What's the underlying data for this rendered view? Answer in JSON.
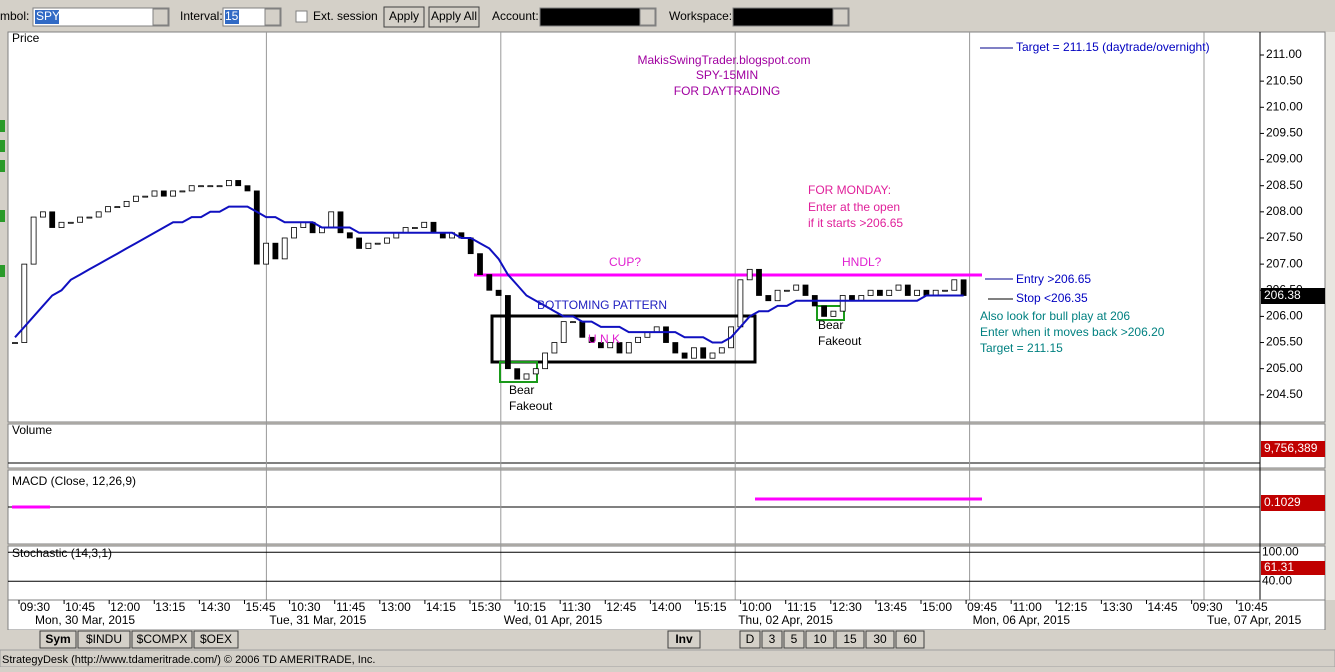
{
  "toolbar": {
    "symbol_label": "mbol:",
    "symbol": "SPY",
    "interval_label": "Interval:",
    "interval": "15",
    "ext_session": "Ext. session",
    "apply": "Apply",
    "apply_all": "Apply All",
    "account_label": "Account:",
    "workspace_label": "Workspace:"
  },
  "chart_data": [
    {
      "type": "candlestick",
      "title": "Price",
      "closes": [
        205.5,
        207.0,
        207.9,
        208.0,
        207.7,
        207.8,
        207.8,
        207.9,
        207.9,
        208.0,
        208.1,
        208.1,
        208.2,
        208.3,
        208.3,
        208.4,
        208.3,
        208.4,
        208.4,
        208.5,
        208.5,
        208.5,
        208.5,
        208.6,
        208.5,
        208.4,
        207.0,
        207.4,
        207.1,
        207.5,
        207.7,
        207.8,
        207.6,
        207.7,
        208.0,
        207.6,
        207.5,
        207.3,
        207.4,
        207.4,
        207.5,
        207.6,
        207.7,
        207.7,
        207.8,
        207.6,
        207.5,
        207.6,
        207.5,
        207.2,
        206.8,
        206.5,
        206.4,
        205.0,
        204.8,
        204.9,
        205.0,
        205.3,
        205.5,
        205.9,
        205.9,
        205.6,
        205.5,
        205.4,
        205.5,
        205.3,
        205.5,
        205.6,
        205.7,
        205.8,
        205.5,
        205.3,
        205.2,
        205.4,
        205.2,
        205.3,
        205.4,
        205.8,
        206.7,
        206.9,
        206.4,
        206.3,
        206.5,
        206.5,
        206.6,
        206.4,
        206.2,
        206.0,
        206.1,
        206.4,
        206.3,
        206.4,
        206.5,
        206.4,
        206.5,
        206.6,
        206.4,
        206.5,
        206.4,
        206.5,
        206.5,
        206.7,
        206.4
      ],
      "ema": [
        205.6,
        205.8,
        206.0,
        206.2,
        206.4,
        206.5,
        206.7,
        206.8,
        206.9,
        207.0,
        207.1,
        207.2,
        207.3,
        207.4,
        207.5,
        207.6,
        207.7,
        207.8,
        207.8,
        207.9,
        207.9,
        208.0,
        208.0,
        208.1,
        208.1,
        208.1,
        208.0,
        207.9,
        207.9,
        207.8,
        207.8,
        207.8,
        207.8,
        207.7,
        207.7,
        207.7,
        207.7,
        207.6,
        207.6,
        207.6,
        207.6,
        207.6,
        207.6,
        207.6,
        207.6,
        207.6,
        207.6,
        207.6,
        207.5,
        207.5,
        207.4,
        207.3,
        207.1,
        206.8,
        206.6,
        206.4,
        206.3,
        206.2,
        206.1,
        206.0,
        206.0,
        205.9,
        205.9,
        205.8,
        205.8,
        205.8,
        205.7,
        205.7,
        205.7,
        205.7,
        205.7,
        205.7,
        205.6,
        205.6,
        205.6,
        205.5,
        205.5,
        205.6,
        205.8,
        206.0,
        206.1,
        206.1,
        206.2,
        206.2,
        206.3,
        206.3,
        206.3,
        206.3,
        206.3,
        206.3,
        206.3,
        206.3,
        206.3,
        206.3,
        206.3,
        206.3,
        206.3,
        206.3,
        206.4,
        206.4,
        206.4,
        206.4,
        206.4
      ],
      "ylim": [
        203.98,
        211.44
      ],
      "yticks": [
        {
          "value": 211,
          "label": "211.00"
        },
        {
          "value": 210.5,
          "label": "210.50"
        },
        {
          "value": 210,
          "label": "210.00"
        },
        {
          "value": 209.5,
          "label": "209.50"
        },
        {
          "value": 209,
          "label": "209.00"
        },
        {
          "value": 208.5,
          "label": "208.50"
        },
        {
          "value": 208,
          "label": "208.00"
        },
        {
          "value": 207.5,
          "label": "207.50"
        },
        {
          "value": 207,
          "label": "207.00"
        },
        {
          "value": 206.5,
          "label": "206.50"
        },
        {
          "value": 206,
          "label": "206.00"
        },
        {
          "value": 205.5,
          "label": "205.50"
        },
        {
          "value": 205,
          "label": "205.00"
        },
        {
          "value": 204.5,
          "label": "204.50"
        }
      ],
      "last_value": 206.38,
      "annotations": {
        "blog": "MakisSwingTrader.blogspot.com",
        "chart_id": "SPY-15MIN",
        "purpose": "FOR DAYTRADING",
        "target_legend": "Target = 211.15 (daytrade/overnight)",
        "monday_1": "FOR MONDAY:",
        "monday_2": "Enter at the open",
        "monday_3": "if it starts >206.65",
        "cup": "CUP?",
        "handle": "HNDL?",
        "entry": "Entry >206.65",
        "stop": "Stop <206.35",
        "also_1": "Also look for bull play at 206",
        "also_2": "Enter when it moves back >206.20",
        "also_3": "Target = 211.15",
        "bottoming": "BOTTOMING PATTERN",
        "letters": "U N K",
        "bear_1": "Bear",
        "fakeout_1": "Fakeout",
        "bear_2": "Bear",
        "fakeout_2": "Fakeout"
      }
    },
    {
      "type": "bar",
      "title": "Volume",
      "last_value": {
        "value": 9756389,
        "label": "9,756,389"
      }
    },
    {
      "type": "line",
      "title": "MACD (Close, 12,26,9)",
      "last_value": 0.1029
    },
    {
      "type": "line",
      "title": "Stochastic (14,3,1)",
      "ylim": [
        1.4,
        112.9
      ],
      "yticks": [
        {
          "value": 100,
          "label": "100.00"
        },
        {
          "value": 40,
          "label": "40.00"
        }
      ],
      "last_value": 61.31
    }
  ],
  "time_axis": {
    "times": [
      "09:30",
      "10:45",
      "12:00",
      "13:15",
      "14:30",
      "15:45",
      "10:30",
      "11:45",
      "13:00",
      "14:15",
      "15:30",
      "10:15",
      "11:30",
      "12:45",
      "14:00",
      "15:15",
      "10:00",
      "11:15",
      "12:30",
      "13:45",
      "15:00",
      "09:45",
      "11:00",
      "12:15",
      "13:30",
      "14:45",
      "09:30",
      "10:45"
    ],
    "dates": [
      "Mon, 30 Mar, 2015",
      "Tue, 31 Mar, 2015",
      "Wed, 01 Apr, 2015",
      "Thu, 02 Apr, 2015",
      "Mon, 06 Apr, 2015",
      "Tue, 07 Apr, 2015"
    ]
  },
  "tabs": {
    "left": [
      "Sym",
      "$INDU",
      "$COMPX",
      "$OEX"
    ],
    "inv": "Inv",
    "intervals": [
      "D",
      "3",
      "5",
      "10",
      "15",
      "30",
      "60"
    ]
  },
  "status": "StrategyDesk (http://www.tdameritrade.com/) © 2006 TD AMERITRADE, Inc."
}
